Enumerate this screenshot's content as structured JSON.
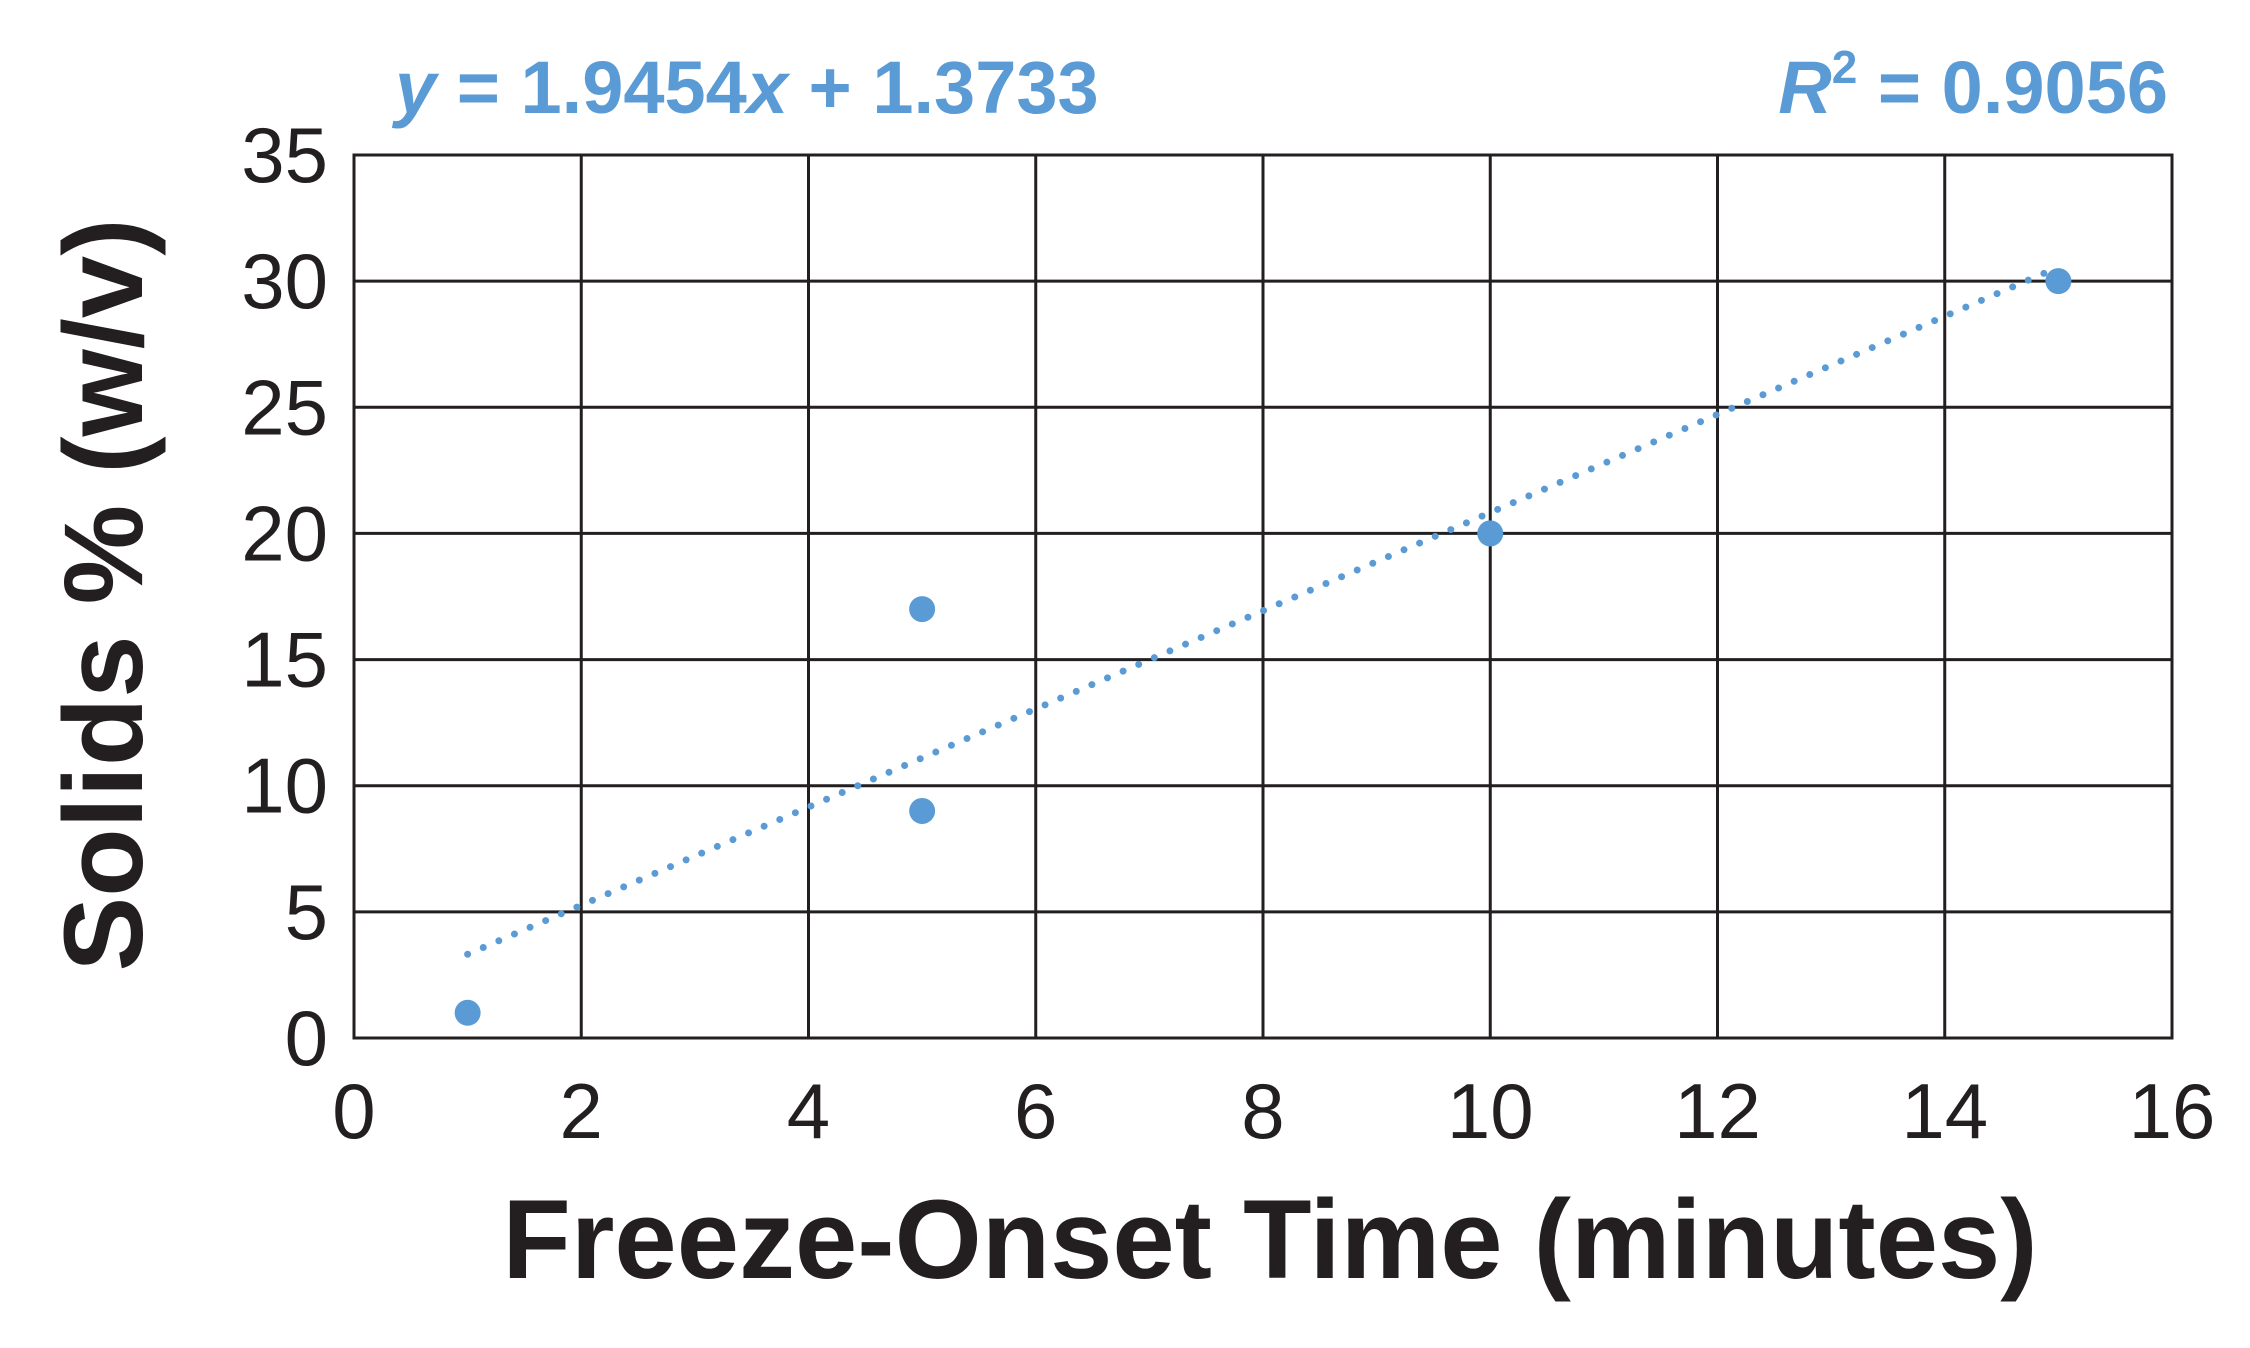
{
  "chart_data": {
    "type": "scatter",
    "title": "",
    "xlabel": "Freeze-Onset Time (minutes)",
    "ylabel": "Solids % (w/v)",
    "xlim": [
      0,
      16
    ],
    "ylim": [
      0,
      35
    ],
    "xticks": [
      0,
      2,
      4,
      6,
      8,
      10,
      12,
      14,
      16
    ],
    "yticks": [
      0,
      5,
      10,
      15,
      20,
      25,
      30,
      35
    ],
    "xtick_labels": [
      "0",
      "2",
      "4",
      "6",
      "8",
      "10",
      "12",
      "14",
      "16"
    ],
    "ytick_labels": [
      "0",
      "5",
      "10",
      "15",
      "20",
      "25",
      "30",
      "35"
    ],
    "grid": true,
    "points": [
      {
        "x": 1,
        "y": 1
      },
      {
        "x": 5,
        "y": 9
      },
      {
        "x": 5,
        "y": 17
      },
      {
        "x": 10,
        "y": 20
      },
      {
        "x": 15,
        "y": 30
      }
    ],
    "trendline": {
      "type": "linear",
      "style": "dotted",
      "slope": 1.9454,
      "intercept": 1.3733,
      "x_range": [
        1,
        15
      ],
      "equation": {
        "y": "y",
        "eq": " = 1.9454",
        "x": "x",
        "rest": " + 1.3733"
      },
      "r_squared": {
        "r": "R",
        "sup": "2",
        "rest": " = 0.9056"
      }
    },
    "colors": {
      "series": "#5b9bd5",
      "grid": "#231f20",
      "text": "#231f20"
    }
  }
}
